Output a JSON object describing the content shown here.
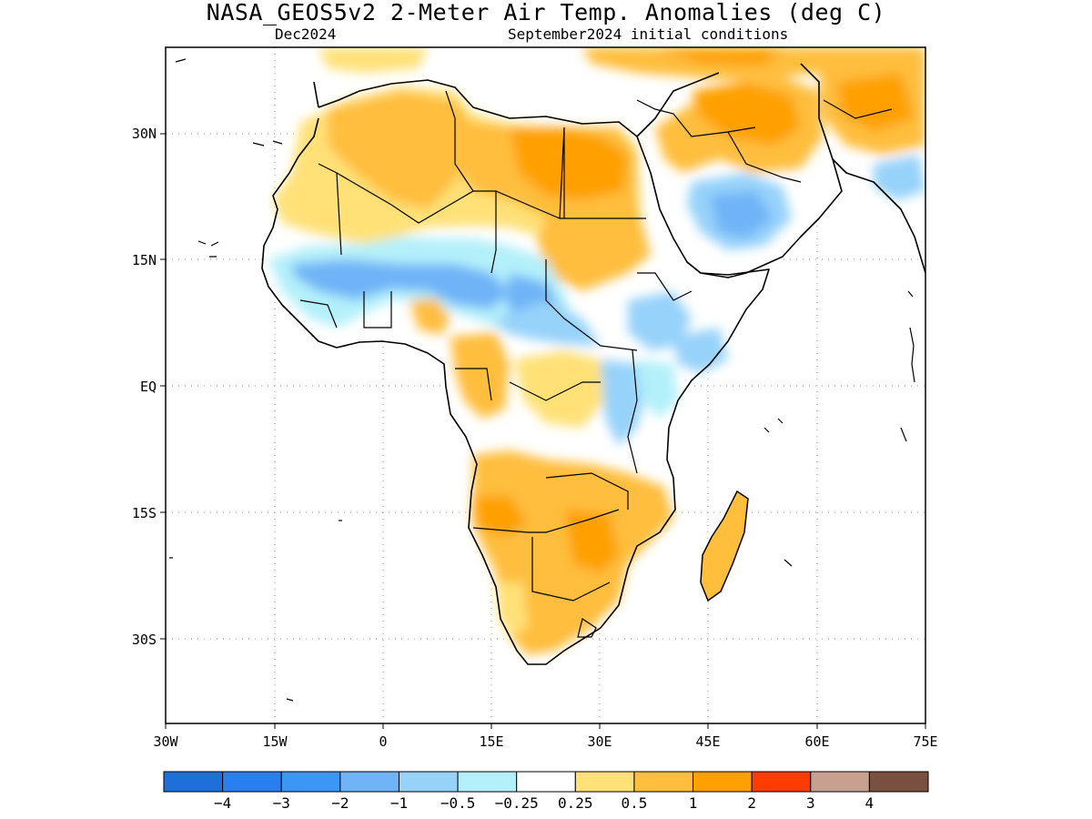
{
  "header": {
    "title": "NASA_GEOS5v2 2-Meter Air Temp. Anomalies (deg C)",
    "period": "Dec2024",
    "init": "September2024 initial conditions"
  },
  "map": {
    "lat_ticks": [
      "30N",
      "15N",
      "EQ",
      "15S",
      "30S"
    ],
    "lon_ticks": [
      "30W",
      "15W",
      "0",
      "15E",
      "30E",
      "45E",
      "60E",
      "75E"
    ],
    "extent": {
      "lon_min": -30,
      "lon_max": 75,
      "lat_min": -41,
      "lat_max": 40
    },
    "anomaly_regions": [
      {
        "name": "Sahara / North Africa",
        "level": "0.5 to 1"
      },
      {
        "name": "Libya / Egypt / Sudan",
        "level": "1 to 2"
      },
      {
        "name": "Sahel",
        "level": "-1 to -0.5"
      },
      {
        "name": "Arabian interior",
        "level": "-1 to -0.25"
      },
      {
        "name": "Southern Africa",
        "level": "0.5 to 2"
      },
      {
        "name": "Madagascar",
        "level": "0.5 to 1"
      },
      {
        "name": "East Africa",
        "level": "-0.5 to 0.5"
      }
    ]
  },
  "colorbar": {
    "colors": [
      "#1e6fd9",
      "#2a7ff0",
      "#3c96f5",
      "#70b4f7",
      "#96d2fa",
      "#b4f0fa",
      "#ffffff",
      "#ffe178",
      "#ffbe3c",
      "#ffa000",
      "#ff3c00",
      "#c8a090",
      "#7a5040"
    ],
    "labels": [
      "−4",
      "−3",
      "−2",
      "−1",
      "−0.5",
      "−0.25",
      "0.25",
      "0.5",
      "1",
      "2",
      "3",
      "4"
    ]
  }
}
